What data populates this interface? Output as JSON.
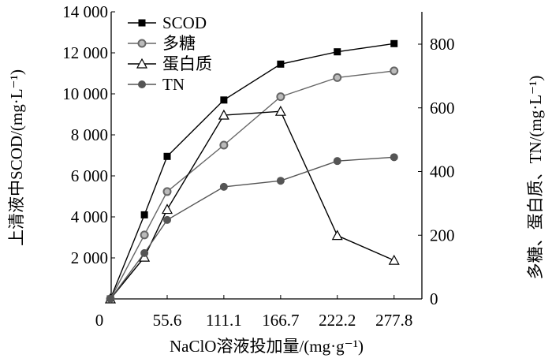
{
  "chart_data": {
    "type": "line",
    "xlabel": "NaClO溶液投加量/(mg·g⁻¹)",
    "ylabel_left": "上清液中SCOD/(mg·L⁻¹)",
    "ylabel_right": "多糖、蛋白质、TN/(mg·L⁻¹)",
    "x": [
      0,
      33.3,
      55.6,
      111.1,
      166.7,
      222.2,
      277.8
    ],
    "x_ticks": [
      0,
      55.6,
      111.1,
      166.7,
      222.2,
      277.8
    ],
    "x_tick_labels": [
      "0",
      "55.6",
      "111.1",
      "166.7",
      "222.2",
      "277.8"
    ],
    "xlim": [
      0,
      300
    ],
    "ylim_left": [
      0,
      14000
    ],
    "left_ticks": [
      2000,
      4000,
      6000,
      8000,
      10000,
      12000,
      14000
    ],
    "left_tick_labels": [
      "2 000",
      "4 000",
      "6 000",
      "8 000",
      "10 000",
      "12 000",
      "14 000"
    ],
    "ylim_right": [
      0,
      900
    ],
    "right_ticks": [
      0,
      200,
      400,
      600,
      800
    ],
    "right_tick_labels": [
      "0",
      "200",
      "400",
      "600",
      "800"
    ],
    "legend_position": "top-left",
    "series": [
      {
        "name": "SCOD",
        "axis": "left",
        "marker": "square-filled",
        "color": "#000000",
        "values": [
          0,
          4100,
          6950,
          9700,
          11450,
          12050,
          12450
        ]
      },
      {
        "name": "多糖",
        "axis": "right",
        "marker": "circle-ring",
        "color": "#666666",
        "values": [
          0,
          201,
          337,
          483,
          635,
          695,
          716
        ]
      },
      {
        "name": "蛋白质",
        "axis": "right",
        "marker": "triangle-open",
        "color": "#000000",
        "values": [
          0,
          131,
          281,
          577,
          589,
          199,
          121
        ]
      },
      {
        "name": "TN",
        "axis": "right",
        "marker": "circle-filled",
        "color": "#555555",
        "values": [
          0,
          144,
          248,
          352,
          371,
          433,
          445
        ]
      }
    ]
  }
}
